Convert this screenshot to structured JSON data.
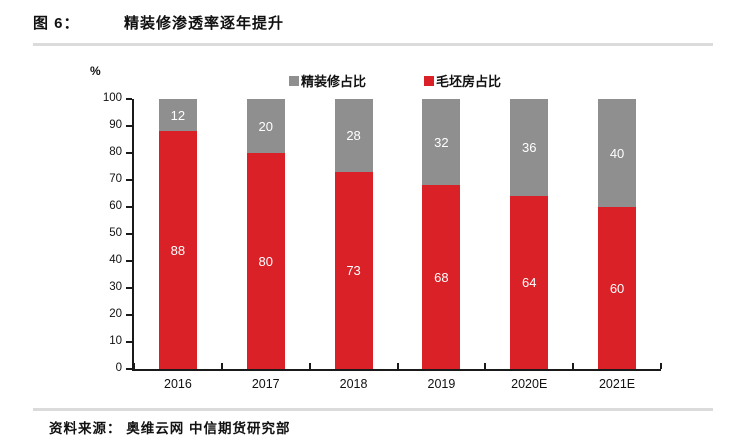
{
  "figure": {
    "label": "图 6：",
    "title": "精装修渗透率逐年提升",
    "source": "资料来源： 奥维云网  中信期货研究部"
  },
  "chart_data": {
    "type": "bar",
    "stacked": true,
    "title": "精装修渗透率逐年提升",
    "unit_label": "%",
    "categories": [
      "2016",
      "2017",
      "2018",
      "2019",
      "2020E",
      "2021E"
    ],
    "series": [
      {
        "name": "毛坯房占比",
        "color": "#da2128",
        "values": [
          88,
          80,
          73,
          68,
          64,
          60
        ]
      },
      {
        "name": "精装修占比",
        "color": "#8f8f8f",
        "values": [
          12,
          20,
          28,
          32,
          36,
          40
        ]
      }
    ],
    "legend": [
      {
        "label": "精装修占比",
        "color": "#8f8f8f"
      },
      {
        "label": "毛坯房占比",
        "color": "#da2128"
      }
    ],
    "legend_position": "top",
    "ylim": [
      0,
      100
    ],
    "yticks": [
      0,
      10,
      20,
      30,
      40,
      50,
      60,
      70,
      80,
      90,
      100
    ],
    "grid": false,
    "bar_label_color": "#ffffff"
  }
}
